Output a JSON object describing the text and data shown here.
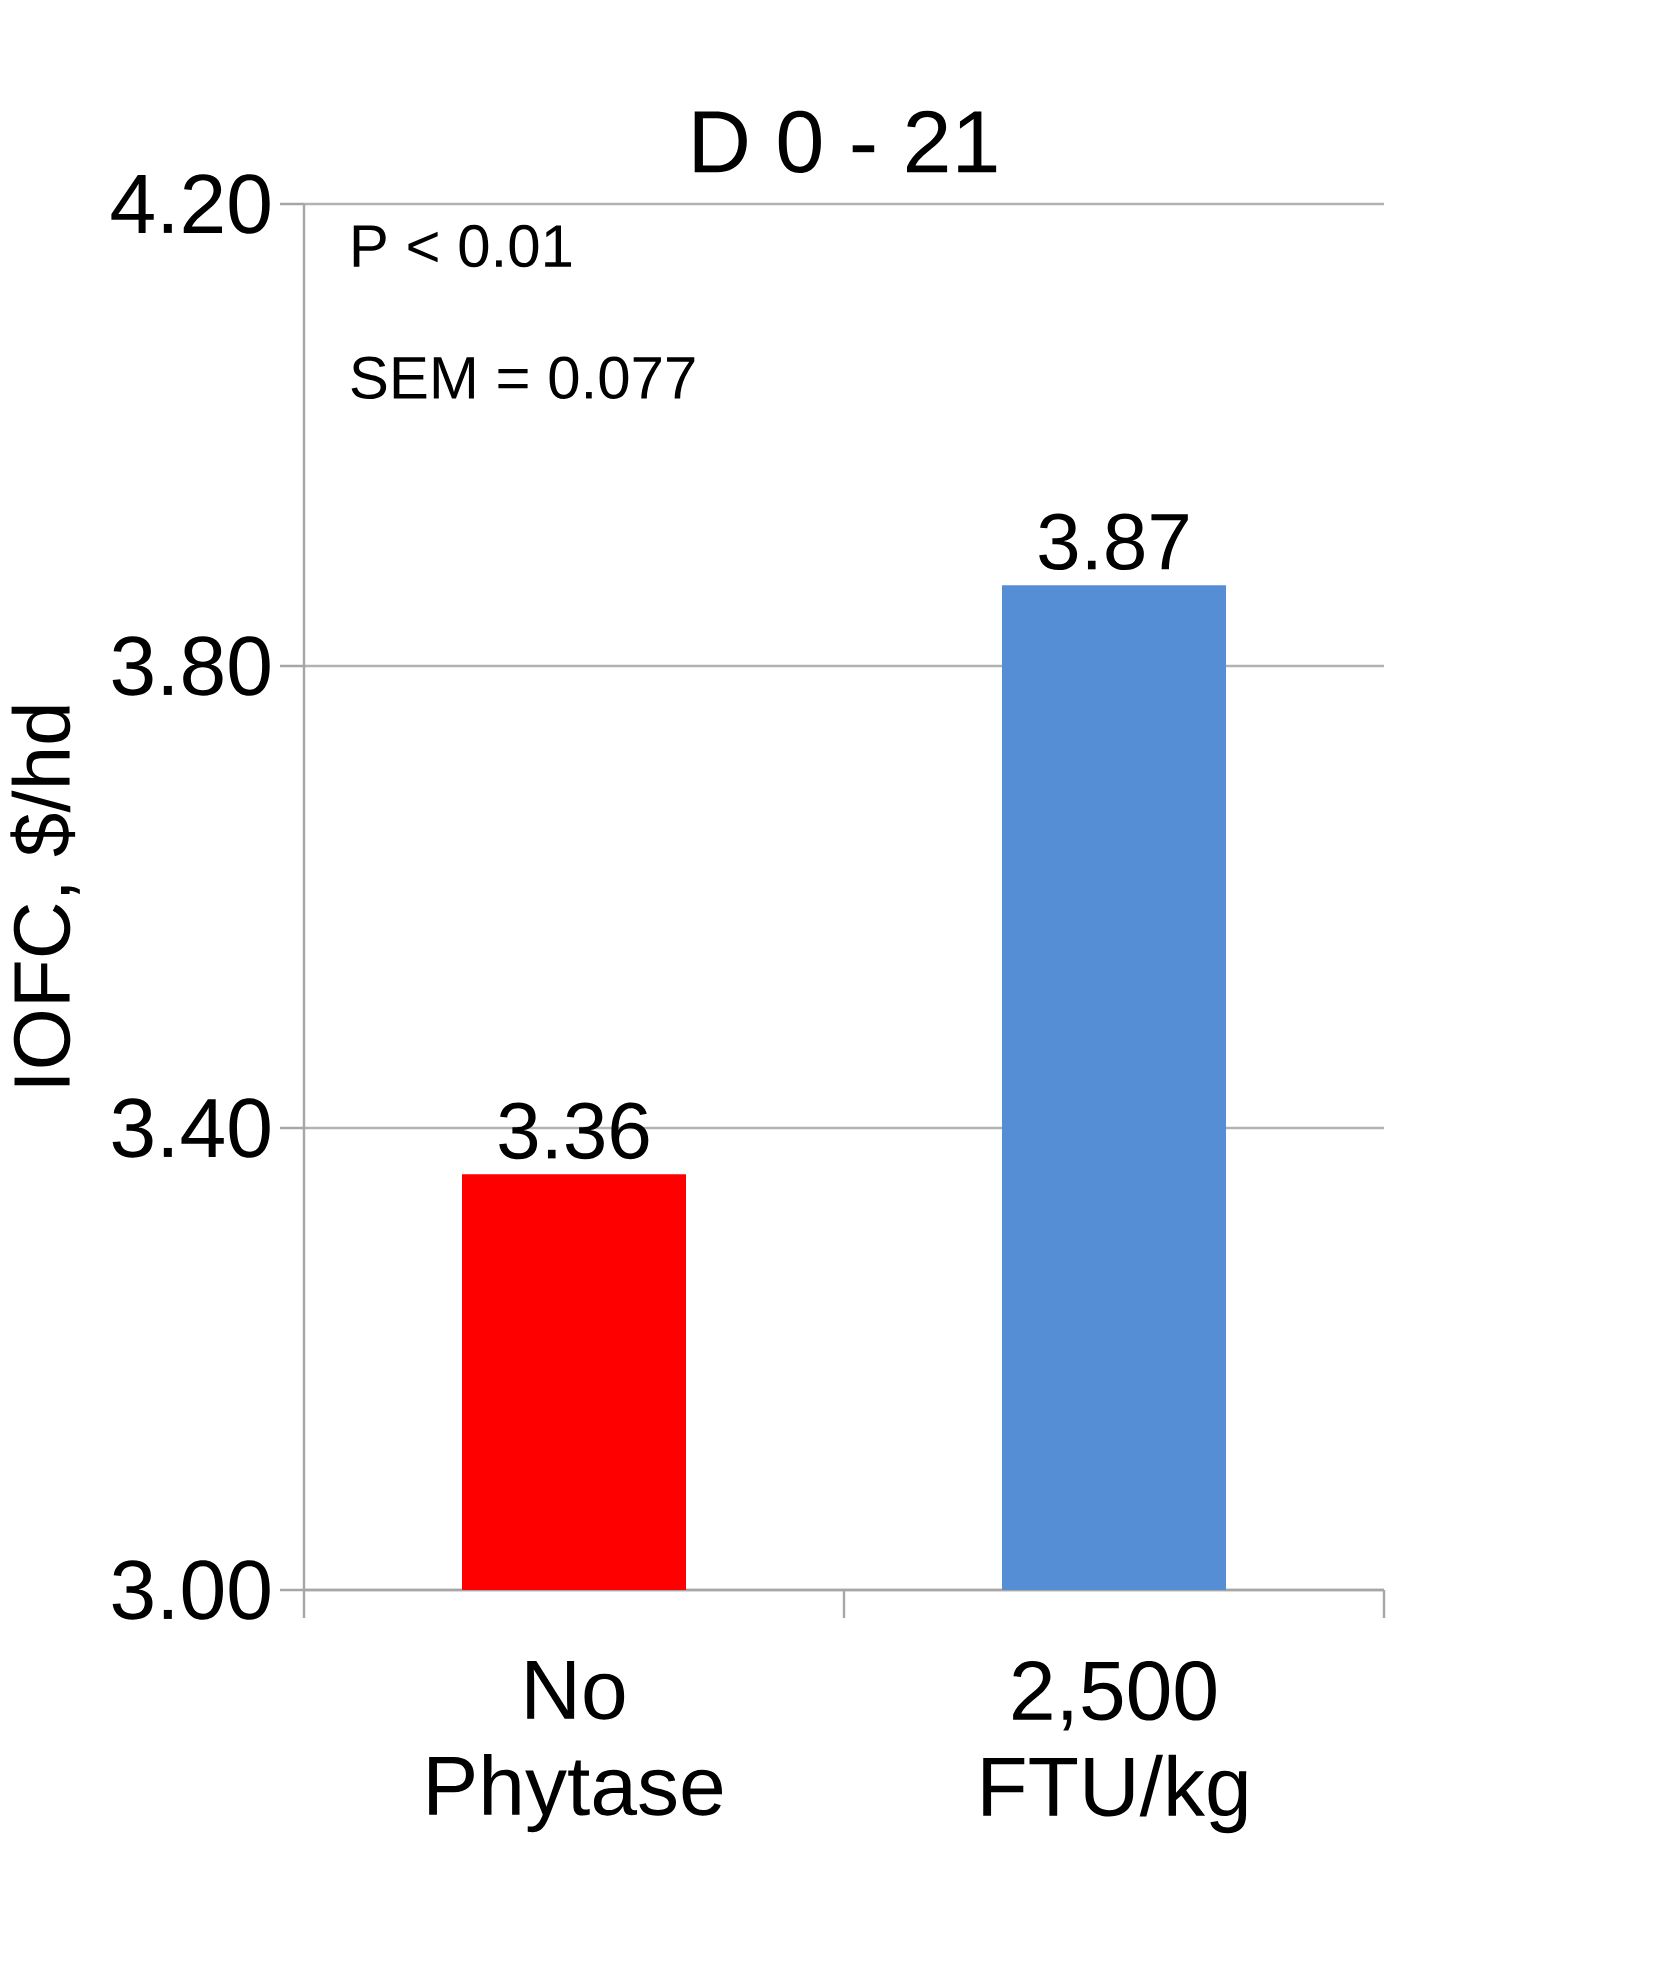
{
  "chart_data": {
    "type": "bar",
    "title": "D 0 - 21",
    "ylabel": "IOFC, $/hd",
    "categories": [
      "No Phytase",
      "2,500 FTU/kg"
    ],
    "values": [
      3.36,
      3.87
    ],
    "colors": [
      "#ff0000",
      "#558ed5"
    ],
    "ylim": [
      3.0,
      4.2
    ],
    "yticks": [
      {
        "value": 3.0,
        "label": "3.00"
      },
      {
        "value": 3.4,
        "label": "3.40"
      },
      {
        "value": 3.8,
        "label": "3.80"
      },
      {
        "value": 4.2,
        "label": "4.20"
      }
    ],
    "grid": "y",
    "data_labels": true,
    "annotations": [
      "P < 0.01",
      "SEM = 0.077"
    ]
  }
}
